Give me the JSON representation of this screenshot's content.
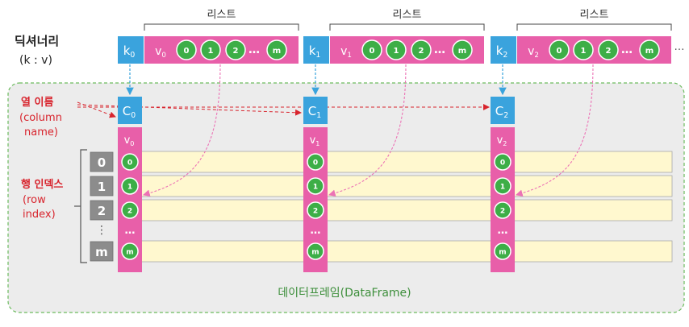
{
  "title_list": "리스트",
  "dict_label": {
    "line1": "딕셔너리",
    "line2": "(k : v)"
  },
  "side_labels": {
    "col_names": {
      "line1": "열 이름",
      "line2": "(column",
      "line3": "name)"
    },
    "row_index": {
      "line1": "행 인덱스",
      "line2": "(row",
      "line3": "index)"
    }
  },
  "dataframe_label": "데이터프레임(DataFrame)",
  "dict_entries": [
    {
      "key_base": "k",
      "key_sub": "0",
      "value_base": "v",
      "value_sub": "0",
      "col_base": "C",
      "col_sub": "0"
    },
    {
      "key_base": "k",
      "key_sub": "1",
      "value_base": "v",
      "value_sub": "1",
      "col_base": "C",
      "col_sub": "1"
    },
    {
      "key_base": "k",
      "key_sub": "2",
      "value_base": "v",
      "value_sub": "2",
      "col_base": "C",
      "col_sub": "2"
    }
  ],
  "list_items": [
    "0",
    "1",
    "2",
    "…",
    "m"
  ],
  "row_indices": [
    "0",
    "1",
    "2",
    "⋮",
    "m"
  ],
  "ellipsis_h": "…",
  "ellipsis_v": "…",
  "trailing_ellipsis": "…",
  "colors": {
    "key_blue": "#3aa3dd",
    "pink": "#e85fa9",
    "green": "#3dae47",
    "red_label": "#d8242d",
    "df_label": "#3e8f3c",
    "row_fill": "#fff8cf",
    "gray_box": "#8c8c8c",
    "bg_gray": "#ececec"
  }
}
